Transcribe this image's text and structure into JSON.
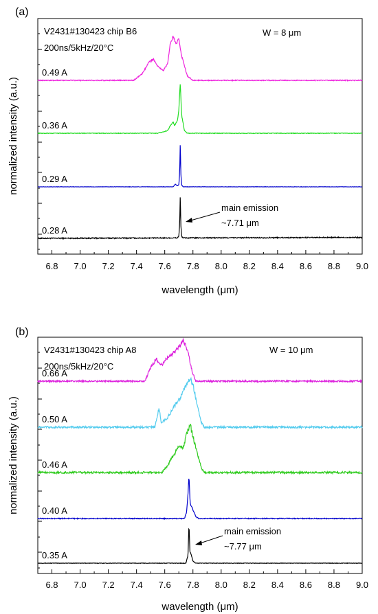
{
  "chart_data": [
    {
      "type": "line",
      "panel_label": "(a)",
      "xlabel": "wavelength (μm)",
      "ylabel": "normalized intensity (a.u.)",
      "xlim": [
        6.7,
        9.0
      ],
      "x_ticks": [
        "6.8",
        "7.0",
        "7.2",
        "7.4",
        "7.6",
        "7.8",
        "8.0",
        "8.2",
        "8.4",
        "8.6",
        "8.8",
        "9.0"
      ],
      "annotations": {
        "device": "V2431#130423 chip B6",
        "conditions": "200ns/5kHz/20°C",
        "width": "W = 8 μm",
        "emission_line1": "main emission",
        "emission_line2": "~7.71 μm"
      },
      "series": [
        {
          "name": "0.28 A",
          "color": "#000000",
          "baseline": 0.06,
          "noise": 0.012,
          "drift": 0.02,
          "points": [
            [
              6.7,
              0.0
            ],
            [
              7.69,
              0.0
            ],
            [
              7.7,
              0.05
            ],
            [
              7.706,
              0.3
            ],
            [
              7.71,
              1.0
            ],
            [
              7.714,
              0.3
            ],
            [
              7.72,
              0.04
            ],
            [
              7.73,
              0.0
            ],
            [
              9.0,
              0.0
            ]
          ]
        },
        {
          "name": "0.29 A",
          "color": "#0000cc",
          "baseline": 0.0,
          "noise": 0.004,
          "drift": 0.0,
          "points": [
            [
              6.7,
              0.0
            ],
            [
              7.66,
              0.0
            ],
            [
              7.675,
              0.06
            ],
            [
              7.69,
              0.02
            ],
            [
              7.7,
              0.05
            ],
            [
              7.706,
              0.3
            ],
            [
              7.71,
              1.0
            ],
            [
              7.714,
              0.3
            ],
            [
              7.72,
              0.04
            ],
            [
              7.73,
              0.0
            ],
            [
              9.0,
              0.0
            ]
          ]
        },
        {
          "name": "0.36 A",
          "color": "#22dd22",
          "baseline": 0.0,
          "noise": 0.006,
          "drift": 0.0,
          "points": [
            [
              6.7,
              0.0
            ],
            [
              7.55,
              0.0
            ],
            [
              7.62,
              0.05
            ],
            [
              7.64,
              0.15
            ],
            [
              7.66,
              0.22
            ],
            [
              7.67,
              0.15
            ],
            [
              7.69,
              0.25
            ],
            [
              7.7,
              0.45
            ],
            [
              7.71,
              1.0
            ],
            [
              7.72,
              0.35
            ],
            [
              7.74,
              0.05
            ],
            [
              7.76,
              0.0
            ],
            [
              9.0,
              0.0
            ]
          ]
        },
        {
          "name": "0.49 A",
          "color": "#ee22dd",
          "baseline": 0.0,
          "noise": 0.01,
          "drift": 0.0,
          "points": [
            [
              6.7,
              0.0
            ],
            [
              7.38,
              0.0
            ],
            [
              7.44,
              0.15
            ],
            [
              7.49,
              0.42
            ],
            [
              7.52,
              0.48
            ],
            [
              7.55,
              0.32
            ],
            [
              7.59,
              0.22
            ],
            [
              7.62,
              0.38
            ],
            [
              7.64,
              0.85
            ],
            [
              7.66,
              1.0
            ],
            [
              7.68,
              0.82
            ],
            [
              7.7,
              0.95
            ],
            [
              7.72,
              0.55
            ],
            [
              7.76,
              0.1
            ],
            [
              7.8,
              0.0
            ],
            [
              9.0,
              0.0
            ]
          ]
        }
      ],
      "series_label_positions": "left, above each trace"
    },
    {
      "type": "line",
      "panel_label": "(b)",
      "xlabel": "wavelength (μm)",
      "ylabel": "normalized intensity (a.u.)",
      "xlim": [
        6.7,
        9.0
      ],
      "x_ticks": [
        "6.8",
        "7.0",
        "7.2",
        "7.4",
        "7.6",
        "7.8",
        "8.0",
        "8.2",
        "8.4",
        "8.6",
        "8.8",
        "9.0"
      ],
      "annotations": {
        "device": "V2431#130423 chip A8",
        "conditions": "200ns/5kHz/20°C",
        "width": "W = 10 μm",
        "emission_line1": "main emission",
        "emission_line2": "~7.77 μm"
      },
      "series": [
        {
          "name": "0.35 A",
          "color": "#000000",
          "baseline": 0.0,
          "noise": 0.006,
          "drift": 0.0,
          "points": [
            [
              6.7,
              0.0
            ],
            [
              7.75,
              0.0
            ],
            [
              7.765,
              0.2
            ],
            [
              7.772,
              1.0
            ],
            [
              7.778,
              0.3
            ],
            [
              7.785,
              0.25
            ],
            [
              7.8,
              0.05
            ],
            [
              7.82,
              0.0
            ],
            [
              9.0,
              0.0
            ]
          ]
        },
        {
          "name": "0.40 A",
          "color": "#0000cc",
          "baseline": 0.0,
          "noise": 0.01,
          "drift": 0.0,
          "points": [
            [
              6.7,
              0.0
            ],
            [
              7.74,
              0.0
            ],
            [
              7.755,
              0.15
            ],
            [
              7.765,
              0.55
            ],
            [
              7.772,
              1.0
            ],
            [
              7.78,
              0.35
            ],
            [
              7.8,
              0.2
            ],
            [
              7.82,
              0.05
            ],
            [
              7.84,
              0.0
            ],
            [
              9.0,
              0.0
            ]
          ]
        },
        {
          "name": "0.46 A",
          "color": "#33cc22",
          "baseline": 0.0,
          "noise": 0.02,
          "drift": 0.0,
          "points": [
            [
              6.7,
              0.0
            ],
            [
              7.58,
              0.0
            ],
            [
              7.62,
              0.15
            ],
            [
              7.66,
              0.35
            ],
            [
              7.7,
              0.55
            ],
            [
              7.73,
              0.5
            ],
            [
              7.76,
              0.85
            ],
            [
              7.78,
              1.0
            ],
            [
              7.8,
              0.75
            ],
            [
              7.83,
              0.4
            ],
            [
              7.86,
              0.1
            ],
            [
              7.88,
              0.0
            ],
            [
              9.0,
              0.0
            ]
          ]
        },
        {
          "name": "0.50 A",
          "color": "#55ccee",
          "baseline": 0.0,
          "noise": 0.02,
          "drift": 0.0,
          "points": [
            [
              6.7,
              0.0
            ],
            [
              7.53,
              0.0
            ],
            [
              7.56,
              0.4
            ],
            [
              7.575,
              0.1
            ],
            [
              7.62,
              0.2
            ],
            [
              7.67,
              0.45
            ],
            [
              7.71,
              0.6
            ],
            [
              7.75,
              0.85
            ],
            [
              7.78,
              1.0
            ],
            [
              7.8,
              0.9
            ],
            [
              7.83,
              0.45
            ],
            [
              7.86,
              0.1
            ],
            [
              7.88,
              0.0
            ],
            [
              9.0,
              0.0
            ]
          ]
        },
        {
          "name": "0.66 A",
          "color": "#dd22dd",
          "baseline": 0.0,
          "noise": 0.02,
          "drift": 0.0,
          "points": [
            [
              6.7,
              0.0
            ],
            [
              7.46,
              0.0
            ],
            [
              7.5,
              0.35
            ],
            [
              7.54,
              0.55
            ],
            [
              7.58,
              0.4
            ],
            [
              7.62,
              0.6
            ],
            [
              7.66,
              0.7
            ],
            [
              7.7,
              0.85
            ],
            [
              7.73,
              1.0
            ],
            [
              7.76,
              0.8
            ],
            [
              7.79,
              0.3
            ],
            [
              7.82,
              0.0
            ],
            [
              9.0,
              0.0
            ]
          ]
        }
      ],
      "series_label_positions": "left, above each trace"
    }
  ]
}
